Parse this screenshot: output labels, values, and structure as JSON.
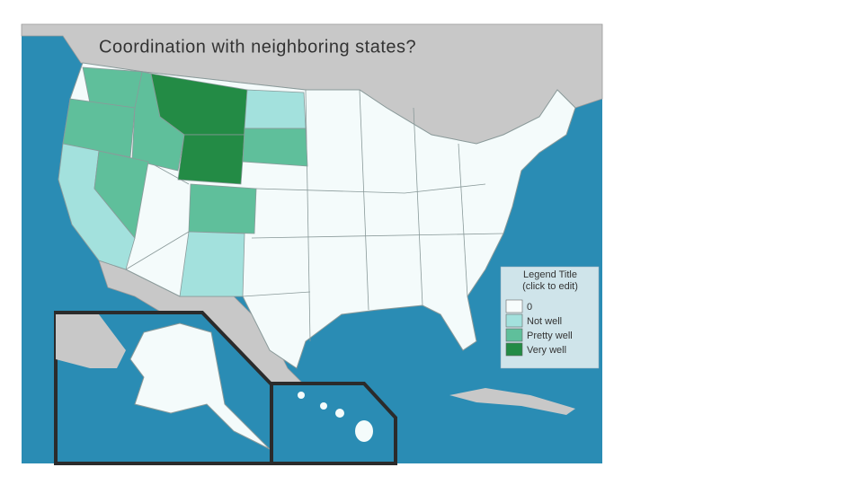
{
  "title": "Coordination with neighboring states?",
  "legend": {
    "title": [
      "Legend Title",
      "(click to edit)"
    ],
    "items": [
      {
        "label": "0",
        "color": "#f7fcfc"
      },
      {
        "label": "Not well",
        "color": "#a3e1dd"
      },
      {
        "label": "Pretty well",
        "color": "#5fbf9b"
      },
      {
        "label": "Very well",
        "color": "#238b45"
      }
    ]
  }
}
